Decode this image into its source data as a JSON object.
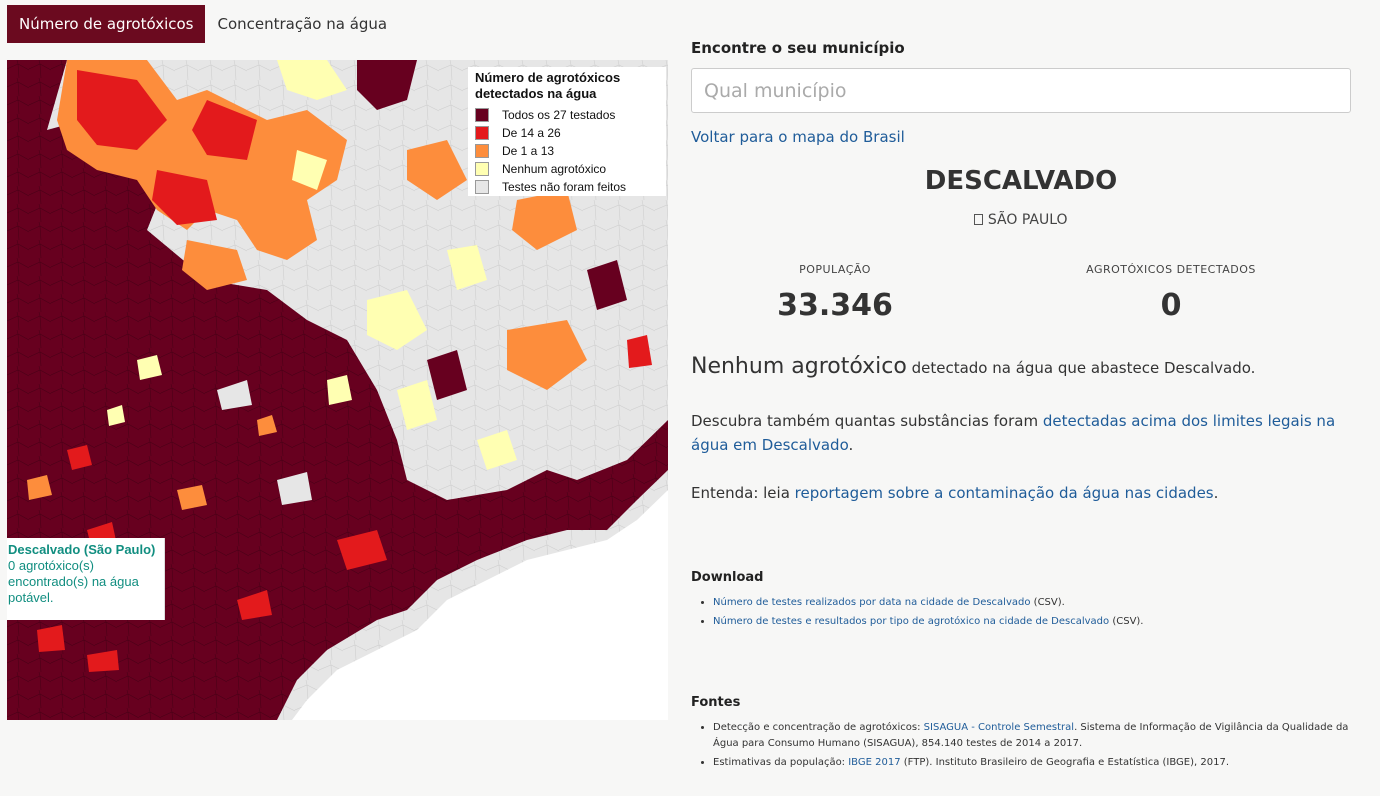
{
  "tabs": [
    {
      "label": "Número de agrotóxicos",
      "active": true
    },
    {
      "label": "Concentração na água",
      "active": false
    }
  ],
  "legend": {
    "title_line1": "Número de agrotóxicos",
    "title_line2": "detectados na água",
    "items": [
      {
        "label": "Todos os 27 testados",
        "color": "#67001f"
      },
      {
        "label": "De 14 a 26",
        "color": "#e31a1c"
      },
      {
        "label": "De 1 a 13",
        "color": "#fd8d3c"
      },
      {
        "label": "Nenhum agrotóxico",
        "color": "#ffffb2"
      },
      {
        "label": "Testes não foram feitos",
        "color": "#e6e6e6"
      }
    ]
  },
  "tooltip": {
    "name": "Descalvado (São Paulo)",
    "line1": "0 agrotóxico(s)",
    "line2": "encontrado(s) na água",
    "line3": "potável."
  },
  "search": {
    "label": "Encontre o seu município",
    "placeholder": "Qual município"
  },
  "back_link": "Voltar para o mapa do Brasil",
  "city": {
    "name": "DESCALVADO",
    "state_icon": "map-marker-icon",
    "state": " SÃO PAULO"
  },
  "stats": {
    "population_label": "POPULAÇÃO",
    "population_value": "33.346",
    "pesticides_label": "AGROTÓXICOS DETECTADOS",
    "pesticides_value": "0"
  },
  "headline": {
    "big": "Nenhum agrotóxico",
    "small": " detectado na água que abastece Descalvado."
  },
  "discover": {
    "prefix": "Descubra também quantas substâncias foram ",
    "link": "detectadas acima dos limites legais na água em Descalvado",
    "suffix": "."
  },
  "understand": {
    "prefix": "Entenda: leia ",
    "link": "reportagem sobre a contaminação da água nas cidades",
    "suffix": "."
  },
  "download": {
    "title": "Download",
    "items": [
      {
        "link": "Número de testes realizados por data na cidade de Descalvado",
        "suffix": " (CSV)."
      },
      {
        "link": "Número de testes e resultados por tipo de agrotóxico na cidade de Descalvado",
        "suffix": " (CSV)."
      }
    ]
  },
  "sources": {
    "title": "Fontes",
    "items": [
      {
        "prefix": "Detecção e concentração de agrotóxicos: ",
        "link": "SISAGUA - Controle Semestral",
        "suffix": ". Sistema de Informação de Vigilância da Qualidade da Água para Consumo Humano (SISAGUA), 854.140 testes de 2014 a 2017."
      },
      {
        "prefix": "Estimativas da população: ",
        "link": "IBGE 2017",
        "suffix": " (FTP). Instituto Brasileiro de Geografia e Estatística (IBGE), 2017."
      }
    ]
  },
  "colors": {
    "accent": "#6b0a1f",
    "link": "#1f5c99",
    "tooltip": "#118e80",
    "all_tested": "#67001f",
    "mid_high": "#e31a1c",
    "low": "#fd8d3c",
    "none": "#ffffb2",
    "untested": "#e6e6e6",
    "ocean": "#ffffff"
  }
}
